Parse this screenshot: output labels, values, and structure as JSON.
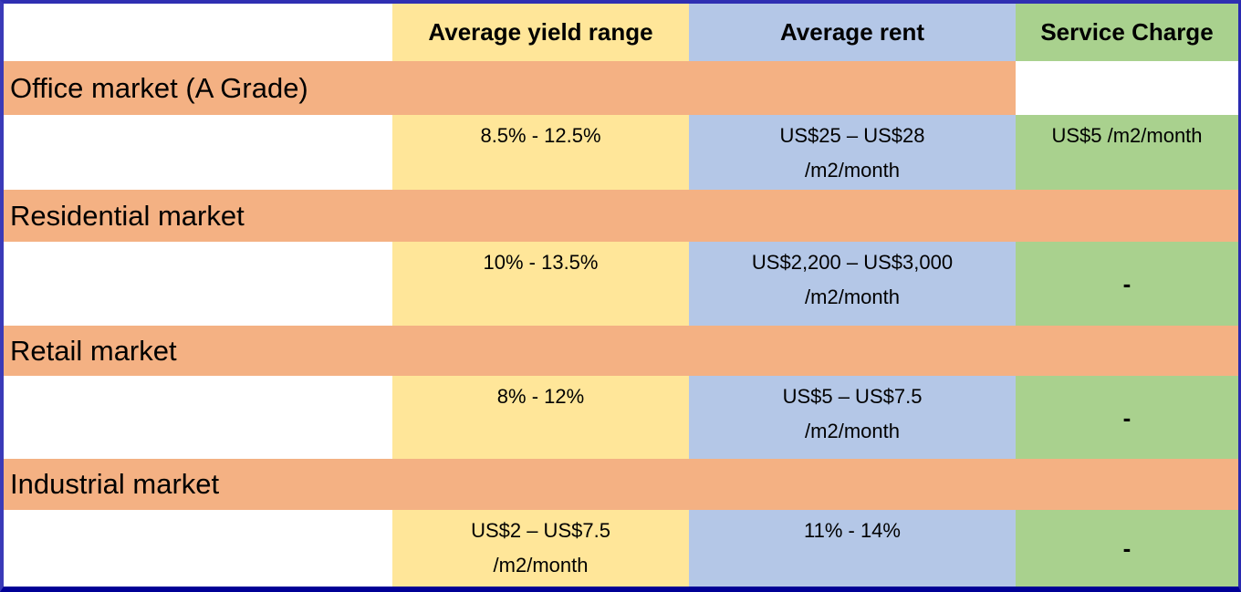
{
  "chart_data": {
    "type": "table",
    "columns": [
      "",
      "Average yield range",
      "Average rent",
      "Service Charge"
    ],
    "rows": [
      [
        "Office market (A Grade)",
        "",
        "",
        ""
      ],
      [
        "",
        "8.5% - 12.5%",
        "US$25 – US$28 /m2/month",
        "US$5 /m2/month"
      ],
      [
        "Residential market",
        "",
        "",
        ""
      ],
      [
        "",
        "10% - 13.5%",
        "US$2,200 – US$3,000 /m2/month",
        "-"
      ],
      [
        "Retail market",
        "",
        "",
        ""
      ],
      [
        "",
        "8% - 12%",
        "US$5 – US$7.5 /m2/month",
        "-"
      ],
      [
        "Industrial market",
        "",
        "",
        ""
      ],
      [
        "",
        "US$2 – US$7.5 /m2/month",
        "11% - 14%",
        "-"
      ]
    ]
  },
  "header": {
    "yield": "Average yield range",
    "rent": "Average rent",
    "service": "Service Charge"
  },
  "sections": [
    {
      "title": "Office market (A Grade)",
      "yield": [
        "8.5% - 12.5%"
      ],
      "rent": [
        "US$25 – US$28",
        "/m2/month"
      ],
      "service": [
        "US$5 /m2/month"
      ]
    },
    {
      "title": "Residential market",
      "yield": [
        "10% - 13.5%"
      ],
      "rent": [
        "US$2,200 – US$3,000",
        "/m2/month"
      ],
      "service": [
        "-"
      ]
    },
    {
      "title": "Retail market",
      "yield": [
        "8% - 12%"
      ],
      "rent": [
        "US$5 – US$7.5",
        "/m2/month"
      ],
      "service": [
        "-"
      ]
    },
    {
      "title": "Industrial market",
      "yield": [
        "US$2 – US$7.5",
        "/m2/month"
      ],
      "rent": [
        "11% - 14%"
      ],
      "service": [
        "-"
      ]
    }
  ],
  "colors": {
    "yield_column": "#FFE699",
    "rent_column": "#B4C7E7",
    "service_column": "#A9D18E",
    "section_band": "#F4B183",
    "outer_border": "#2F2FB2",
    "bottom_border": "#000096"
  }
}
